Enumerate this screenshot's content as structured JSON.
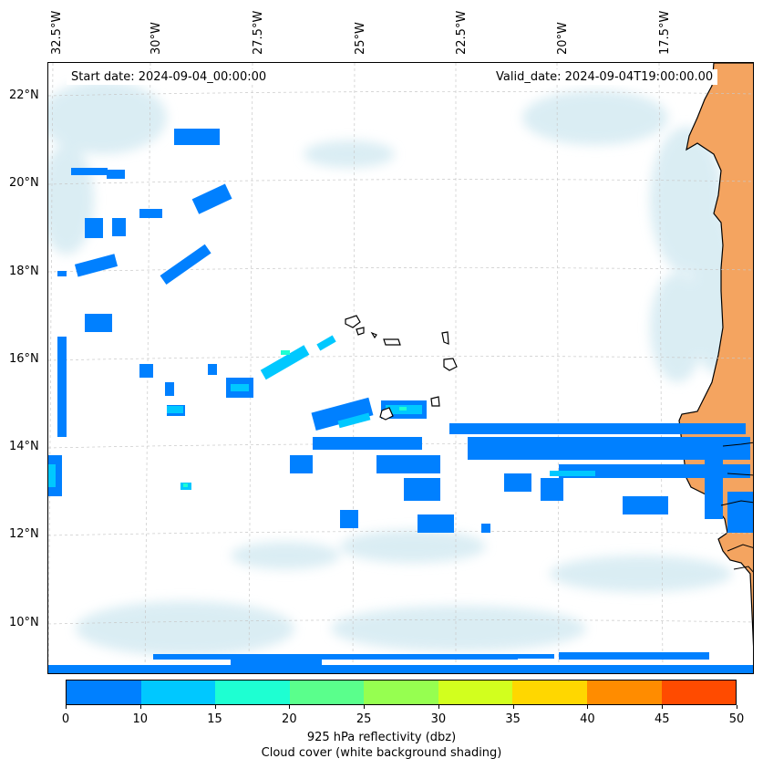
{
  "info": {
    "start_date": "Start date: 2024-09-04_00:00:00",
    "valid_date": "Valid_date: 2024-09-04T19:00:00.00"
  },
  "lon_labels": [
    "32.5°W",
    "30°W",
    "27.5°W",
    "25°W",
    "22.5°W",
    "20°W",
    "17.5°W"
  ],
  "lat_labels": [
    "22°N",
    "20°N",
    "18°N",
    "16°N",
    "14°N",
    "12°N",
    "10°N"
  ],
  "colorbar": {
    "label": "925 hPa reflectivity (dbz)",
    "sublabel": "Cloud cover (white background shading)",
    "ticks": [
      "0",
      "10",
      "15",
      "20",
      "25",
      "30",
      "35",
      "40",
      "45",
      "50"
    ],
    "colors": [
      "#0080ff",
      "#00c8ff",
      "#1effd2",
      "#5aff8c",
      "#96ff50",
      "#d2ff1e",
      "#ffd700",
      "#ff8c00",
      "#ff4b00"
    ]
  },
  "colors": {
    "land": "#f4a460",
    "coast": "#000000",
    "grid": "#c8c8c8",
    "cloud": "#d4eaf2"
  }
}
